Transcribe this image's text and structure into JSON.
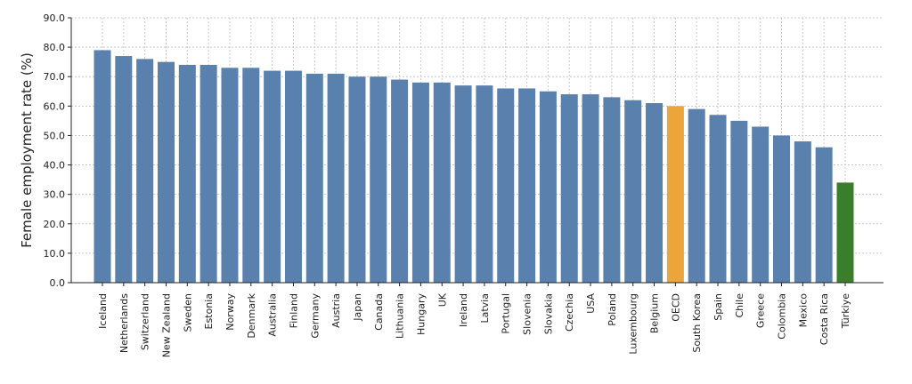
{
  "chart_data": {
    "type": "bar",
    "title": "",
    "xlabel": "",
    "ylabel": "Female employment rate (%)",
    "ylim": [
      0,
      90
    ],
    "yticks": [
      "0.0",
      "10.0",
      "20.0",
      "30.0",
      "40.0",
      "50.0",
      "60.0",
      "70.0",
      "80.0",
      "90.0"
    ],
    "grid": true,
    "categories": [
      "Iceland",
      "Netherlands",
      "Switzerland",
      "New Zealand",
      "Sweden",
      "Estonia",
      "Norway",
      "Denmark",
      "Australia",
      "Finland",
      "Germany",
      "Austria",
      "Japan",
      "Canada",
      "Lithuania",
      "Hungary",
      "UK",
      "Ireland",
      "Latvia",
      "Portugal",
      "Slovenia",
      "Slovakia",
      "Czechia",
      "USA",
      "Poland",
      "Luxembourg",
      "Belgium",
      "OECD",
      "South Korea",
      "Spain",
      "Chile",
      "Greece",
      "Colombia",
      "Mexico",
      "Costa Rica",
      "Türkiye"
    ],
    "values": [
      79,
      77,
      76,
      75,
      74,
      74,
      73,
      73,
      72,
      72,
      71,
      71,
      70,
      70,
      69,
      68,
      68,
      67,
      67,
      66,
      66,
      65,
      64,
      64,
      63,
      62,
      61,
      60,
      59,
      57,
      55,
      53,
      50,
      48,
      46,
      34
    ],
    "colors": {
      "default": "#5a80ad",
      "highlight": {
        "OECD": "#eba53a",
        "Türkiye": "#3a7d2a"
      }
    }
  }
}
